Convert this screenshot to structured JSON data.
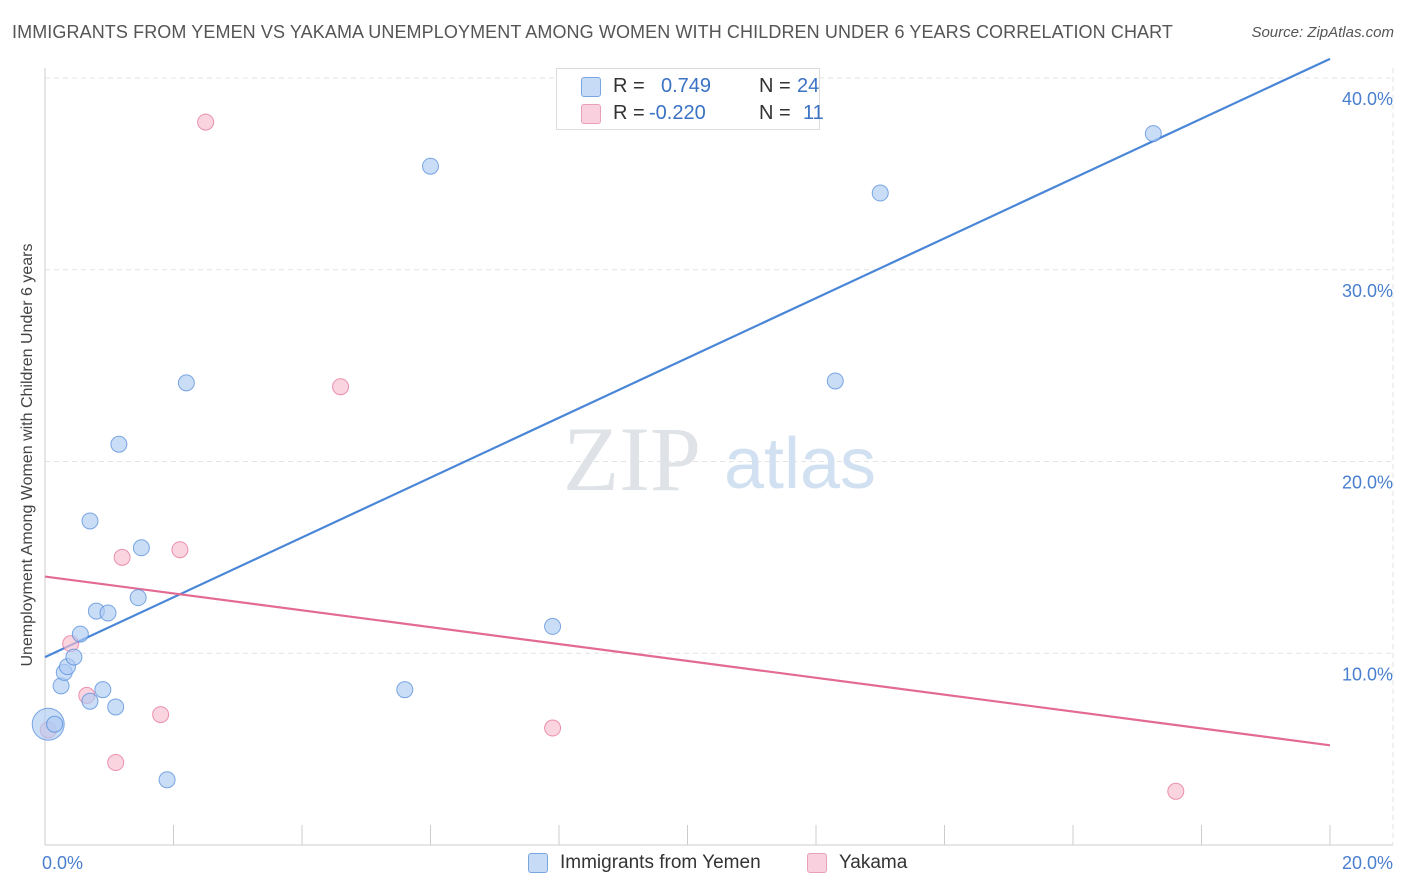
{
  "title": "IMMIGRANTS FROM YEMEN VS YAKAMA UNEMPLOYMENT AMONG WOMEN WITH CHILDREN UNDER 6 YEARS CORRELATION CHART",
  "source": "Source: ZipAtlas.com",
  "watermark": {
    "zip": "ZIP",
    "atlas": "atlas"
  },
  "legend_top": {
    "rows": [
      {
        "r_label": "R =",
        "r_value": "0.749",
        "n_label": "N =",
        "n_value": "24",
        "color": "#aecbf3"
      },
      {
        "r_label": "R =",
        "r_value": "-0.220",
        "n_label": "N =",
        "n_value": "11",
        "color": "#f7bfd0"
      }
    ]
  },
  "chart_data": {
    "type": "scatter",
    "title": "IMMIGRANTS FROM YEMEN VS YAKAMA UNEMPLOYMENT AMONG WOMEN WITH CHILDREN UNDER 6 YEARS CORRELATION CHART",
    "xlabel": "",
    "ylabel": "Unemployment Among Women with Children Under 6 years",
    "xlim": [
      0,
      20
    ],
    "ylim": [
      0,
      40
    ],
    "x_tick_labels": [
      "0.0%",
      "20.0%"
    ],
    "y_tick_values": [
      10,
      20,
      30,
      40
    ],
    "y_tick_labels": [
      "10.0%",
      "20.0%",
      "30.0%",
      "40.0%"
    ],
    "grid": true,
    "series": [
      {
        "name": "Immigrants from Yemen",
        "color": "#4a86d8",
        "fill": "#aecbf3",
        "points": [
          {
            "x": 0.05,
            "y": 6.3,
            "large": true
          },
          {
            "x": 0.15,
            "y": 6.3
          },
          {
            "x": 0.25,
            "y": 8.3
          },
          {
            "x": 0.3,
            "y": 9.0
          },
          {
            "x": 0.35,
            "y": 9.3
          },
          {
            "x": 0.45,
            "y": 9.8
          },
          {
            "x": 0.55,
            "y": 11.0
          },
          {
            "x": 0.7,
            "y": 7.5
          },
          {
            "x": 0.7,
            "y": 16.9
          },
          {
            "x": 0.8,
            "y": 12.2
          },
          {
            "x": 0.9,
            "y": 8.1
          },
          {
            "x": 0.98,
            "y": 12.1
          },
          {
            "x": 1.1,
            "y": 7.2
          },
          {
            "x": 1.15,
            "y": 20.9
          },
          {
            "x": 1.45,
            "y": 12.9
          },
          {
            "x": 1.5,
            "y": 15.5
          },
          {
            "x": 1.9,
            "y": 3.4
          },
          {
            "x": 2.2,
            "y": 24.1
          },
          {
            "x": 5.6,
            "y": 8.1
          },
          {
            "x": 6.0,
            "y": 35.4
          },
          {
            "x": 7.9,
            "y": 11.4
          },
          {
            "x": 12.3,
            "y": 24.2
          },
          {
            "x": 13.0,
            "y": 34.0
          },
          {
            "x": 17.25,
            "y": 37.1
          }
        ],
        "trend": {
          "x1": 0,
          "y1": 9.8,
          "x2": 20,
          "y2": 41.0
        }
      },
      {
        "name": "Yakama",
        "color": "#e36a93",
        "fill": "#f7bfd0",
        "points": [
          {
            "x": 0.05,
            "y": 6.0
          },
          {
            "x": 0.4,
            "y": 10.5
          },
          {
            "x": 0.65,
            "y": 7.8
          },
          {
            "x": 1.1,
            "y": 4.3
          },
          {
            "x": 1.2,
            "y": 15.0
          },
          {
            "x": 1.8,
            "y": 6.8
          },
          {
            "x": 2.1,
            "y": 15.4
          },
          {
            "x": 2.5,
            "y": 37.7
          },
          {
            "x": 4.6,
            "y": 23.9
          },
          {
            "x": 7.9,
            "y": 6.1
          },
          {
            "x": 17.6,
            "y": 2.8
          }
        ],
        "trend": {
          "x1": 0,
          "y1": 14.0,
          "x2": 20,
          "y2": 5.2
        }
      }
    ]
  }
}
